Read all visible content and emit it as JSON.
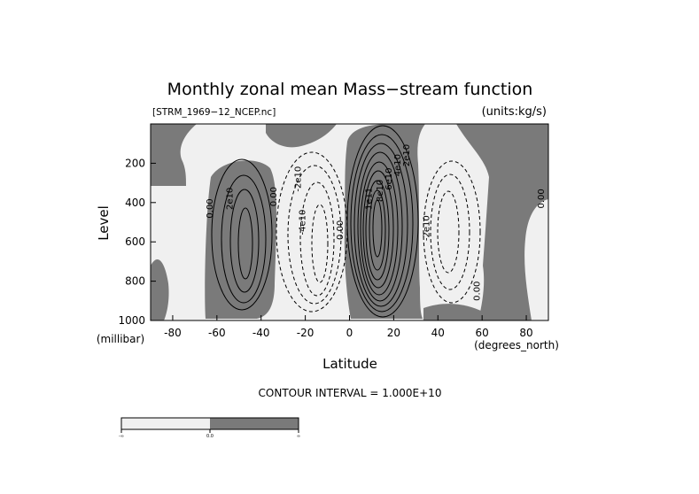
{
  "chart_data": {
    "type": "contour",
    "title": "Monthly zonal mean Mass−stream function",
    "file_label": "[STRM_1969−12_NCEP.nc]",
    "units_label": "(units:kg/s)",
    "xlabel": "Latitude",
    "x_unit": "(degrees_north)",
    "ylabel": "Level",
    "y_unit": "(millibar)",
    "xlim": [
      -90,
      90
    ],
    "ylim": [
      1000,
      0
    ],
    "x_ticks": [
      -80,
      -60,
      -40,
      -20,
      0,
      20,
      40,
      60,
      80
    ],
    "y_ticks": [
      200,
      400,
      600,
      800,
      1000
    ],
    "contour_interval_text": "CONTOUR INTERVAL = 1.000E+10",
    "contour_interval": 10000000000.0,
    "shading": {
      "negative_color": "#f0f0f0",
      "positive_color": "#7a7a7a"
    },
    "colorbar": {
      "labels": [
        "-∞",
        "0.0",
        "∞"
      ]
    },
    "contour_labels": [
      {
        "text": "0.00",
        "lat": -62,
        "lev": 430
      },
      {
        "text": "2e10",
        "lat": -53,
        "lev": 380
      },
      {
        "text": "0.00",
        "lat": -33,
        "lev": 370
      },
      {
        "text": "-2e10",
        "lat": -22,
        "lev": 280
      },
      {
        "text": "-4e10",
        "lat": -20,
        "lev": 500
      },
      {
        "text": "0.00",
        "lat": -3,
        "lev": 540
      },
      {
        "text": "2e10",
        "lat": 27,
        "lev": 160
      },
      {
        "text": "4e10",
        "lat": 23,
        "lev": 210
      },
      {
        "text": "6e10",
        "lat": 19,
        "lev": 280
      },
      {
        "text": "8e10",
        "lat": 15,
        "lev": 340
      },
      {
        "text": "1e11",
        "lat": 10,
        "lev": 380
      },
      {
        "text": "-2e10",
        "lat": 36,
        "lev": 530
      },
      {
        "text": "0.00",
        "lat": 59,
        "lev": 850
      },
      {
        "text": "0.00",
        "lat": 88,
        "lev": 380
      }
    ]
  }
}
